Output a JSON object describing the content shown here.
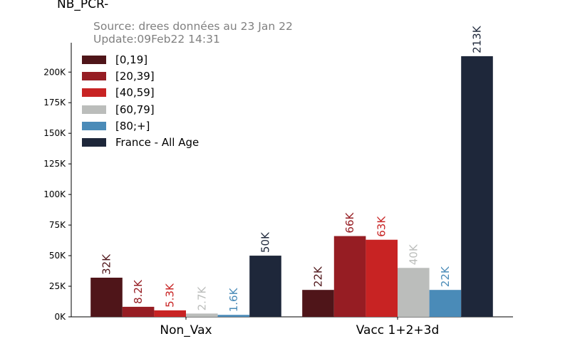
{
  "header": {
    "title": "NB_PCR-",
    "source_line1": "Source: drees données au 23 Jan 22",
    "source_line2": "Update:09Feb22 14:31"
  },
  "chart_data": {
    "type": "bar",
    "title": "NB_PCR-",
    "categories": [
      "Non_Vax",
      "Vacc 1+2+3d"
    ],
    "series": [
      {
        "name": "[0,19]",
        "color": "#4f1519",
        "values": [
          32000,
          22000
        ],
        "labels": [
          "32K",
          "22K"
        ]
      },
      {
        "name": "[20,39]",
        "color": "#961d23",
        "values": [
          8200,
          66000
        ],
        "labels": [
          "8.2K",
          "66K"
        ]
      },
      {
        "name": "[40,59]",
        "color": "#c82323",
        "values": [
          5300,
          63000
        ],
        "labels": [
          "5.3K",
          "63K"
        ]
      },
      {
        "name": "[60,79]",
        "color": "#bbbdbb",
        "values": [
          2700,
          40000
        ],
        "labels": [
          "2.7K",
          "40K"
        ]
      },
      {
        "name": "[80;+]",
        "color": "#4a8bb8",
        "values": [
          1600,
          22000
        ],
        "labels": [
          "1.6K",
          "22K"
        ]
      },
      {
        "name": "France - All Age",
        "color": "#1e273a",
        "values": [
          50000,
          213000
        ],
        "labels": [
          "50K",
          "213K"
        ]
      }
    ],
    "yticks": [
      0,
      25000,
      50000,
      75000,
      100000,
      125000,
      150000,
      175000,
      200000
    ],
    "ytick_labels": [
      "0K",
      "25K",
      "50K",
      "75K",
      "100K",
      "125K",
      "150K",
      "175K",
      "200K"
    ],
    "ylim": [
      0,
      224000
    ],
    "grid": false,
    "legend_position": "top-left"
  }
}
